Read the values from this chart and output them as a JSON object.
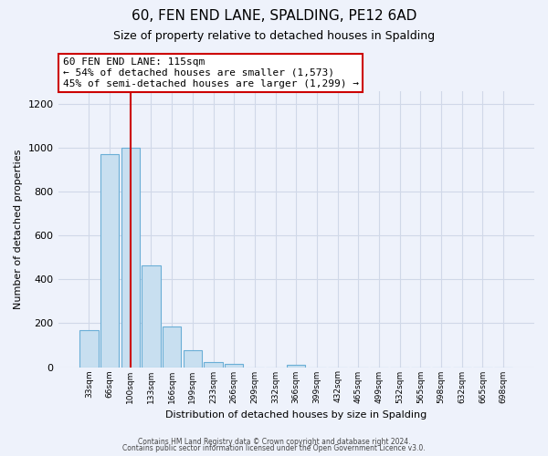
{
  "title": "60, FEN END LANE, SPALDING, PE12 6AD",
  "subtitle": "Size of property relative to detached houses in Spalding",
  "xlabel": "Distribution of detached houses by size in Spalding",
  "ylabel": "Number of detached properties",
  "bar_labels": [
    "33sqm",
    "66sqm",
    "100sqm",
    "133sqm",
    "166sqm",
    "199sqm",
    "233sqm",
    "266sqm",
    "299sqm",
    "332sqm",
    "366sqm",
    "399sqm",
    "432sqm",
    "465sqm",
    "499sqm",
    "532sqm",
    "565sqm",
    "598sqm",
    "632sqm",
    "665sqm",
    "698sqm"
  ],
  "bar_values": [
    170,
    970,
    1000,
    465,
    185,
    75,
    25,
    15,
    0,
    0,
    10,
    0,
    0,
    0,
    0,
    0,
    0,
    0,
    0,
    0,
    0
  ],
  "bar_color": "#c8dff0",
  "bar_edge_color": "#6aaed6",
  "highlight_bar_index": 2,
  "highlight_color": "#cc0000",
  "ylim": [
    0,
    1260
  ],
  "yticks": [
    0,
    200,
    400,
    600,
    800,
    1000,
    1200
  ],
  "annotation_line1": "60 FEN END LANE: 115sqm",
  "annotation_line2": "← 54% of detached houses are smaller (1,573)",
  "annotation_line3": "45% of semi-detached houses are larger (1,299) →",
  "annotation_box_color": "#ffffff",
  "annotation_box_edge": "#cc0000",
  "footer_line1": "Contains HM Land Registry data © Crown copyright and database right 2024.",
  "footer_line2": "Contains public sector information licensed under the Open Government Licence v3.0.",
  "background_color": "#eef2fb",
  "grid_color": "#d0d8e8"
}
